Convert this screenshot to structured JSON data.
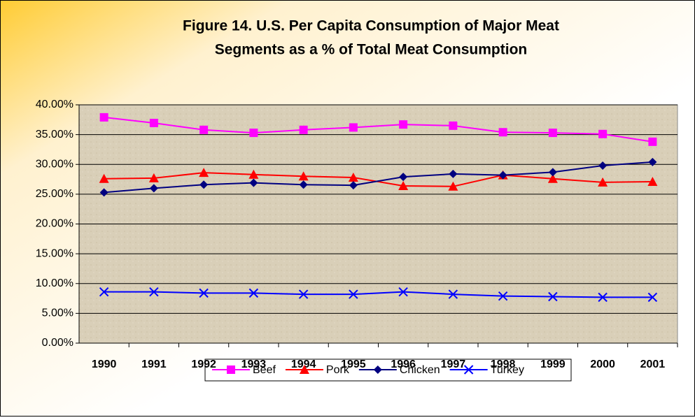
{
  "chart_data": {
    "type": "line",
    "title": [
      "Figure 14. U.S. Per Capita Consumption of Major Meat",
      "Segments as a % of Total Meat Consumption"
    ],
    "categories": [
      "1990",
      "1991",
      "1992",
      "1993",
      "1994",
      "1995",
      "1996",
      "1997",
      "1998",
      "1999",
      "2000",
      "2001"
    ],
    "series": [
      {
        "name": "Beef",
        "color": "#ff00ff",
        "marker": "square",
        "values": [
          37.9,
          36.95,
          35.8,
          35.3,
          35.8,
          36.2,
          36.7,
          36.5,
          35.4,
          35.3,
          35.1,
          33.8
        ]
      },
      {
        "name": "Pork",
        "color": "#ff0000",
        "marker": "triangle",
        "values": [
          27.6,
          27.7,
          28.6,
          28.3,
          28.0,
          27.8,
          26.4,
          26.3,
          28.2,
          27.6,
          27.0,
          27.1
        ]
      },
      {
        "name": "Chicken",
        "color": "#000080",
        "marker": "diamond",
        "values": [
          25.3,
          26.0,
          26.6,
          26.9,
          26.6,
          26.5,
          27.9,
          28.4,
          28.2,
          28.7,
          29.8,
          30.4
        ]
      },
      {
        "name": "Turkey",
        "color": "#0000ff",
        "marker": "x",
        "values": [
          8.6,
          8.6,
          8.4,
          8.4,
          8.2,
          8.2,
          8.6,
          8.2,
          7.9,
          7.8,
          7.7,
          7.7
        ]
      }
    ],
    "ylim": [
      0,
      40
    ],
    "yticks": [
      {
        "value": 0,
        "label": "0.00%"
      },
      {
        "value": 5,
        "label": "5.00%"
      },
      {
        "value": 10,
        "label": "10.00%"
      },
      {
        "value": 15,
        "label": "15.00%"
      },
      {
        "value": 20,
        "label": "20.00%"
      },
      {
        "value": 25,
        "label": "25.00%"
      },
      {
        "value": 30,
        "label": "30.00%"
      },
      {
        "value": 35,
        "label": "35.00%"
      },
      {
        "value": 40,
        "label": "40.00%"
      }
    ],
    "grid": true,
    "legend": "bottom"
  }
}
